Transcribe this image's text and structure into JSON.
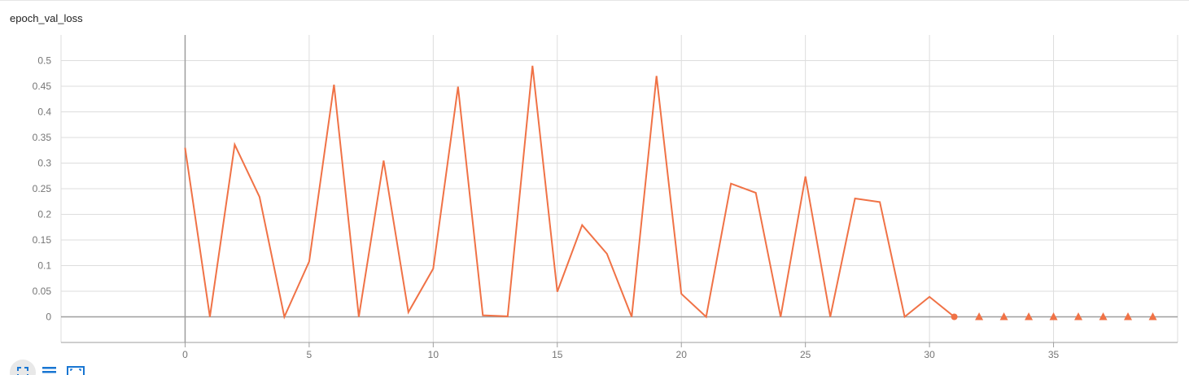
{
  "card": {
    "title": "epoch_val_loss"
  },
  "toolbar": {
    "buttons": [
      {
        "name": "fullscreen-button",
        "icon": "fullscreen-icon"
      },
      {
        "name": "toggle-log-scale-button",
        "icon": "list-icon"
      },
      {
        "name": "fit-domain-button",
        "icon": "fit-to-data-icon"
      }
    ]
  },
  "colors": {
    "series": "#f07246",
    "grid": "#dddddd",
    "axis": "#9e9e9e",
    "tick_text": "#757575"
  },
  "chart_data": {
    "type": "line",
    "title": "epoch_val_loss",
    "xlabel": "",
    "ylabel": "",
    "xlim": [
      -5,
      40
    ],
    "ylim": [
      -0.05,
      0.55
    ],
    "x_ticks": [
      "0",
      "5",
      "10",
      "15",
      "20",
      "25",
      "30",
      "35"
    ],
    "y_ticks": [
      "0",
      "0.05",
      "0.1",
      "0.15",
      "0.2",
      "0.25",
      "0.3",
      "0.35",
      "0.4",
      "0.45",
      "0.5"
    ],
    "grid": true,
    "series": [
      {
        "x": [
          0,
          1,
          2,
          3,
          4,
          5,
          6,
          7,
          8,
          9,
          10,
          11,
          12,
          13,
          14,
          15,
          16,
          17,
          18,
          19,
          20,
          21,
          22,
          23,
          24,
          25,
          26,
          27,
          28,
          29,
          30,
          31
        ],
        "values": [
          0.33,
          0.0,
          0.336,
          0.234,
          0.0,
          0.108,
          0.453,
          0.0,
          0.305,
          0.009,
          0.094,
          0.449,
          0.003,
          0.001,
          0.49,
          0.049,
          0.179,
          0.123,
          0.0,
          0.47,
          0.045,
          0.0,
          0.26,
          0.242,
          0.0,
          0.274,
          0.0,
          0.231,
          0.224,
          0.0,
          0.039,
          0.0
        ],
        "color": "#f07246"
      }
    ],
    "markers": {
      "circle": {
        "x": [
          31
        ],
        "values": [
          0.0
        ]
      },
      "triangle": {
        "x": [
          32,
          33,
          34,
          35,
          36,
          37,
          38,
          39
        ],
        "values": [
          0.0,
          0.0,
          0.0,
          0.0,
          0.0,
          0.0,
          0.0,
          0.0
        ]
      }
    }
  }
}
